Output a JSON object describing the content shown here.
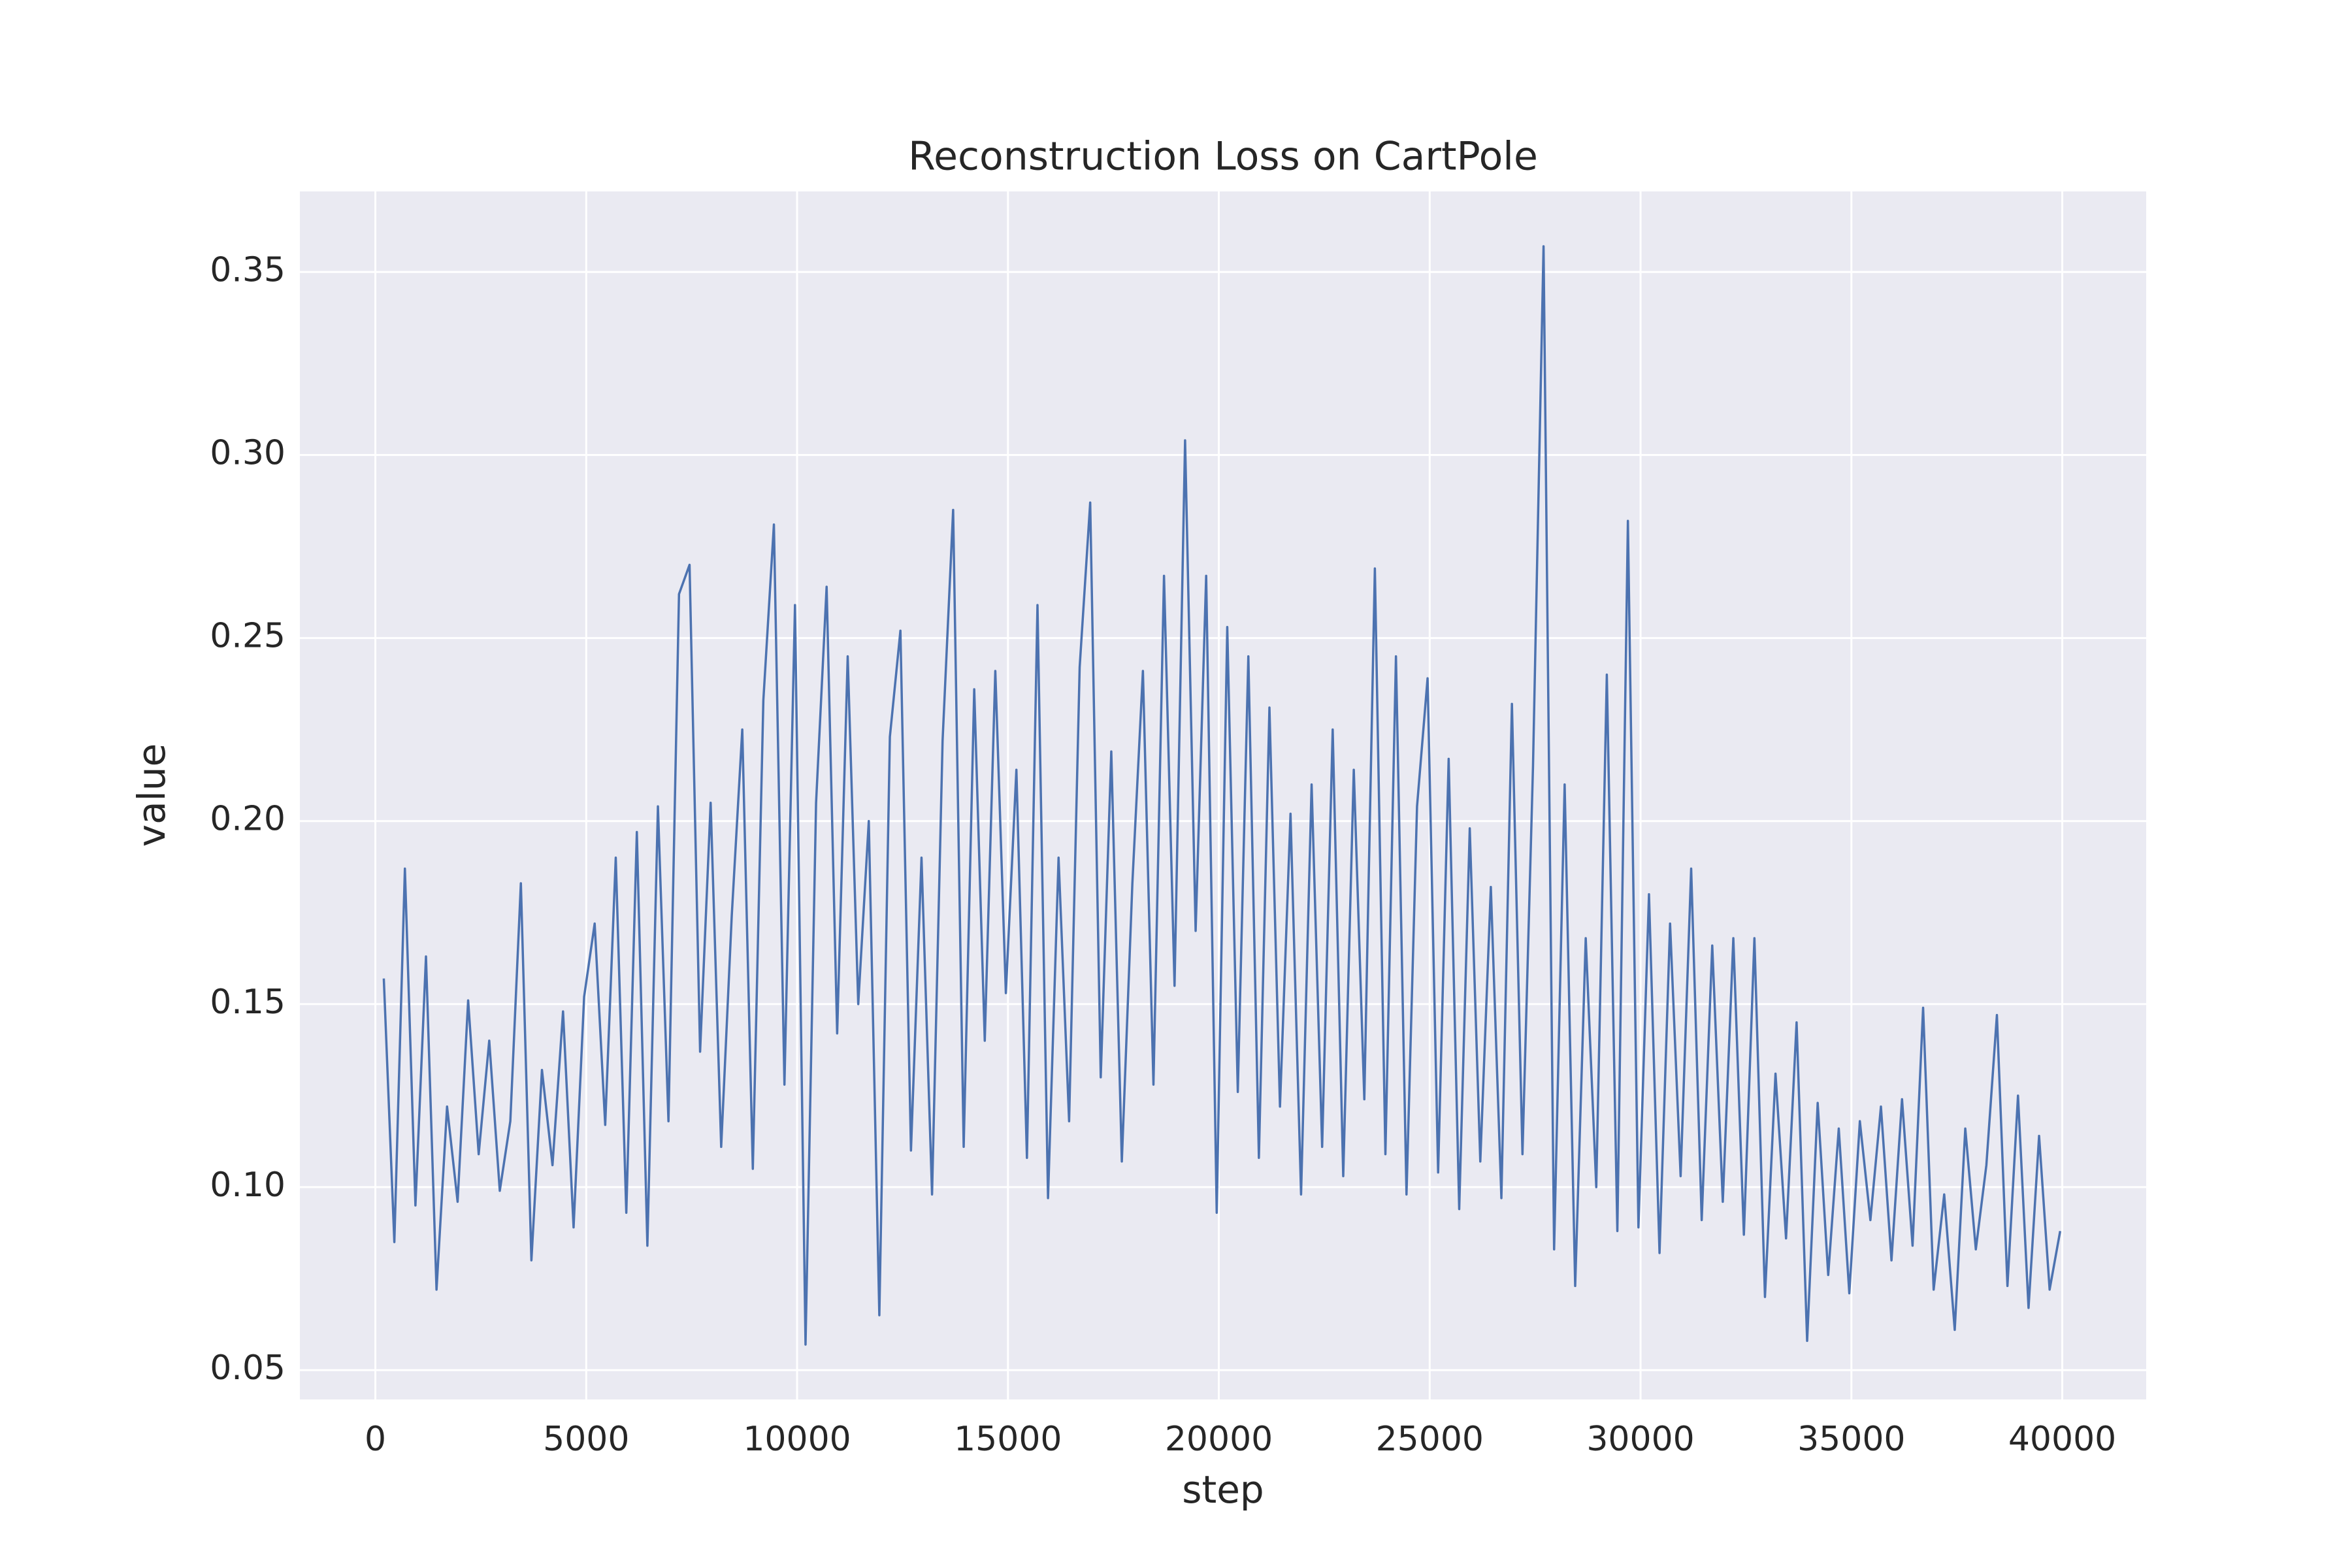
{
  "chart_data": {
    "type": "line",
    "title": "Reconstruction Loss on CartPole",
    "xlabel": "step",
    "ylabel": "value",
    "xlim": [
      -1790,
      41990
    ],
    "ylim": [
      0.042,
      0.372
    ],
    "xticks": [
      0,
      5000,
      10000,
      15000,
      20000,
      25000,
      30000,
      35000,
      40000
    ],
    "yticks": [
      0.05,
      {
        "value": 0.1,
        "label": "0.10"
      },
      0.15,
      {
        "value": 0.2,
        "label": "0.20"
      },
      0.25,
      {
        "value": 0.3,
        "label": "0.30"
      },
      0.35
    ],
    "grid": true,
    "x": [
      200,
      450,
      700,
      950,
      1200,
      1450,
      1700,
      1950,
      2200,
      2450,
      2700,
      2950,
      3200,
      3450,
      3700,
      3950,
      4200,
      4450,
      4700,
      4950,
      5200,
      5450,
      5700,
      5950,
      6200,
      6450,
      6700,
      6950,
      7200,
      7450,
      7700,
      7950,
      8200,
      8450,
      8700,
      8950,
      9200,
      9450,
      9700,
      9950,
      10200,
      10450,
      10700,
      10950,
      11200,
      11450,
      11700,
      11950,
      12200,
      12450,
      12700,
      12950,
      13200,
      13450,
      13700,
      13950,
      14200,
      14450,
      14700,
      14950,
      15200,
      15450,
      15700,
      15950,
      16200,
      16450,
      16700,
      16950,
      17200,
      17450,
      17700,
      17950,
      18200,
      18450,
      18700,
      18950,
      19200,
      19450,
      19700,
      19950,
      20200,
      20450,
      20700,
      20950,
      21200,
      21450,
      21700,
      21950,
      22200,
      22450,
      22700,
      22950,
      23200,
      23450,
      23700,
      23950,
      24200,
      24450,
      24700,
      24950,
      25200,
      25450,
      25700,
      25950,
      26200,
      26450,
      26700,
      26950,
      27200,
      27450,
      27700,
      27950,
      28200,
      28450,
      28700,
      28950,
      29200,
      29450,
      29700,
      29950,
      30200,
      30450,
      30700,
      30950,
      31200,
      31450,
      31700,
      31950,
      32200,
      32450,
      32700,
      32950,
      33200,
      33450,
      33700,
      33950,
      34200,
      34450,
      34700,
      34950,
      35200,
      35450,
      35700,
      35950,
      36200,
      36450,
      36700,
      36950,
      37200,
      37450,
      37700,
      37950,
      38200,
      38450,
      38700,
      38950,
      39200,
      39450,
      39700,
      39950
    ],
    "series": [
      {
        "name": "value",
        "color": "#4c72b0",
        "values": [
          0.157,
          0.085,
          0.187,
          0.095,
          0.163,
          0.072,
          0.122,
          0.096,
          0.151,
          0.109,
          0.14,
          0.099,
          0.118,
          0.183,
          0.08,
          0.132,
          0.106,
          0.148,
          0.089,
          0.152,
          0.172,
          0.117,
          0.19,
          0.093,
          0.197,
          0.084,
          0.204,
          0.118,
          0.262,
          0.27,
          0.137,
          0.205,
          0.111,
          0.174,
          0.225,
          0.105,
          0.233,
          0.281,
          0.128,
          0.259,
          0.057,
          0.205,
          0.264,
          0.142,
          0.245,
          0.15,
          0.2,
          0.065,
          0.223,
          0.252,
          0.11,
          0.19,
          0.098,
          0.222,
          0.285,
          0.111,
          0.236,
          0.14,
          0.241,
          0.153,
          0.214,
          0.108,
          0.259,
          0.097,
          0.19,
          0.118,
          0.242,
          0.287,
          0.13,
          0.219,
          0.107,
          0.183,
          0.241,
          0.128,
          0.267,
          0.155,
          0.304,
          0.17,
          0.267,
          0.093,
          0.253,
          0.126,
          0.245,
          0.108,
          0.231,
          0.122,
          0.202,
          0.098,
          0.21,
          0.111,
          0.225,
          0.103,
          0.214,
          0.124,
          0.269,
          0.109,
          0.245,
          0.098,
          0.204,
          0.239,
          0.104,
          0.217,
          0.094,
          0.198,
          0.107,
          0.182,
          0.097,
          0.232,
          0.109,
          0.215,
          0.357,
          0.083,
          0.21,
          0.073,
          0.168,
          0.1,
          0.24,
          0.088,
          0.282,
          0.089,
          0.18,
          0.082,
          0.172,
          0.103,
          0.187,
          0.091,
          0.166,
          0.096,
          0.168,
          0.087,
          0.168,
          0.07,
          0.131,
          0.086,
          0.145,
          0.058,
          0.123,
          0.076,
          0.116,
          0.071,
          0.118,
          0.091,
          0.122,
          0.08,
          0.124,
          0.084,
          0.149,
          0.072,
          0.098,
          0.061,
          0.116,
          0.083,
          0.106,
          0.147,
          0.073,
          0.125,
          0.067,
          0.114,
          0.072,
          0.088
        ]
      }
    ]
  }
}
